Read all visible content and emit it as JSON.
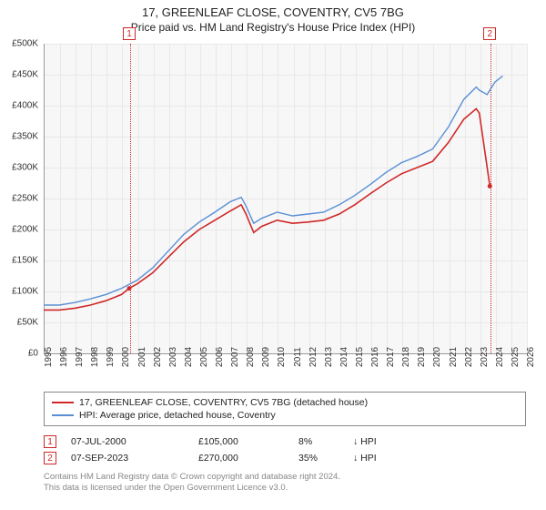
{
  "title": "17, GREENLEAF CLOSE, COVENTRY, CV5 7BG",
  "subtitle": "Price paid vs. HM Land Registry's House Price Index (HPI)",
  "chart": {
    "type": "line",
    "background_color": "#f7f7f7",
    "grid_color": "#e8e8e8",
    "axis_color": "#999999",
    "ylim": [
      0,
      500000
    ],
    "ytick_step": 50000,
    "yticks": [
      "£0",
      "£50K",
      "£100K",
      "£150K",
      "£200K",
      "£250K",
      "£300K",
      "£350K",
      "£400K",
      "£450K",
      "£500K"
    ],
    "xlim": [
      1995,
      2026
    ],
    "xtick_step": 1,
    "xticks": [
      "1995",
      "1996",
      "1997",
      "1998",
      "1999",
      "2000",
      "2001",
      "2002",
      "2003",
      "2004",
      "2005",
      "2006",
      "2007",
      "2008",
      "2009",
      "2010",
      "2011",
      "2012",
      "2013",
      "2014",
      "2015",
      "2016",
      "2017",
      "2018",
      "2019",
      "2020",
      "2021",
      "2022",
      "2023",
      "2024",
      "2025",
      "2026"
    ],
    "series": [
      {
        "name": "property",
        "label": "17, GREENLEAF CLOSE, COVENTRY, CV5 7BG (detached house)",
        "color": "#d02828",
        "line_width": 1.6,
        "data": [
          [
            1995,
            70000
          ],
          [
            1996,
            70000
          ],
          [
            1997,
            73000
          ],
          [
            1998,
            78000
          ],
          [
            1999,
            85000
          ],
          [
            2000,
            95000
          ],
          [
            2000.5,
            105000
          ],
          [
            2001,
            112000
          ],
          [
            2002,
            130000
          ],
          [
            2003,
            155000
          ],
          [
            2004,
            180000
          ],
          [
            2005,
            200000
          ],
          [
            2006,
            215000
          ],
          [
            2007,
            230000
          ],
          [
            2007.7,
            240000
          ],
          [
            2008,
            225000
          ],
          [
            2008.5,
            195000
          ],
          [
            2009,
            205000
          ],
          [
            2010,
            215000
          ],
          [
            2011,
            210000
          ],
          [
            2012,
            212000
          ],
          [
            2013,
            215000
          ],
          [
            2014,
            225000
          ],
          [
            2015,
            240000
          ],
          [
            2016,
            258000
          ],
          [
            2017,
            275000
          ],
          [
            2018,
            290000
          ],
          [
            2019,
            300000
          ],
          [
            2020,
            310000
          ],
          [
            2021,
            340000
          ],
          [
            2022,
            378000
          ],
          [
            2022.8,
            395000
          ],
          [
            2023,
            388000
          ],
          [
            2023.68,
            270000
          ]
        ]
      },
      {
        "name": "hpi",
        "label": "HPI: Average price, detached house, Coventry",
        "color": "#5a8fd4",
        "line_width": 1.4,
        "data": [
          [
            1995,
            78000
          ],
          [
            1996,
            78000
          ],
          [
            1997,
            82000
          ],
          [
            1998,
            88000
          ],
          [
            1999,
            95000
          ],
          [
            2000,
            105000
          ],
          [
            2001,
            118000
          ],
          [
            2002,
            138000
          ],
          [
            2003,
            165000
          ],
          [
            2004,
            192000
          ],
          [
            2005,
            212000
          ],
          [
            2006,
            228000
          ],
          [
            2007,
            245000
          ],
          [
            2007.7,
            252000
          ],
          [
            2008,
            238000
          ],
          [
            2008.5,
            210000
          ],
          [
            2009,
            218000
          ],
          [
            2010,
            228000
          ],
          [
            2011,
            222000
          ],
          [
            2012,
            225000
          ],
          [
            2013,
            228000
          ],
          [
            2014,
            240000
          ],
          [
            2015,
            255000
          ],
          [
            2016,
            273000
          ],
          [
            2017,
            292000
          ],
          [
            2018,
            308000
          ],
          [
            2019,
            318000
          ],
          [
            2020,
            330000
          ],
          [
            2021,
            365000
          ],
          [
            2022,
            410000
          ],
          [
            2022.8,
            430000
          ],
          [
            2023,
            425000
          ],
          [
            2023.5,
            418000
          ],
          [
            2024,
            438000
          ],
          [
            2024.5,
            448000
          ]
        ]
      }
    ],
    "markers": [
      {
        "id": "1",
        "x": 2000.5,
        "y": 105000
      },
      {
        "id": "2",
        "x": 2023.68,
        "y": 270000
      }
    ],
    "marker_color": "#d02828",
    "point_radius": 2.5
  },
  "legend": {
    "rows": [
      {
        "color": "#d02828",
        "label": "17, GREENLEAF CLOSE, COVENTRY, CV5 7BG (detached house)"
      },
      {
        "color": "#5a8fd4",
        "label": "HPI: Average price, detached house, Coventry"
      }
    ]
  },
  "transactions": [
    {
      "id": "1",
      "date": "07-JUL-2000",
      "price": "£105,000",
      "pct": "8%",
      "dir": "↓",
      "vs": "HPI"
    },
    {
      "id": "2",
      "date": "07-SEP-2023",
      "price": "£270,000",
      "pct": "35%",
      "dir": "↓",
      "vs": "HPI"
    }
  ],
  "footer": {
    "line1": "Contains HM Land Registry data © Crown copyright and database right 2024.",
    "line2": "This data is licensed under the Open Government Licence v3.0."
  }
}
